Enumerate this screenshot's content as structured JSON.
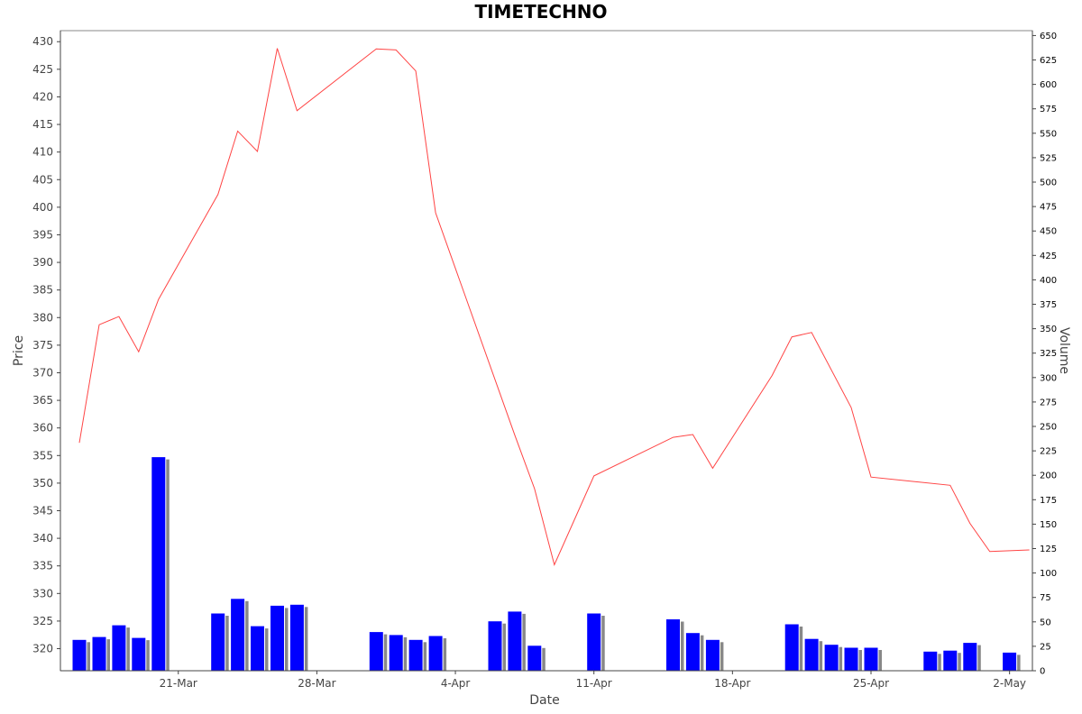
{
  "chart_data": {
    "type": "line",
    "title": "TIMETECHNO",
    "xlabel": "Date",
    "ylabel": "Price",
    "y2label": "Volume",
    "x_ticks": [
      "21-Mar",
      "28-Mar",
      "4-Apr",
      "11-Apr",
      "18-Apr",
      "25-Apr",
      "2-May"
    ],
    "x_tick_days": [
      5,
      12,
      19,
      26,
      33,
      40,
      47
    ],
    "ylim": [
      316,
      432
    ],
    "y_ticks": [
      320,
      325,
      330,
      335,
      340,
      345,
      350,
      355,
      360,
      365,
      370,
      375,
      380,
      385,
      390,
      395,
      400,
      405,
      410,
      415,
      420,
      425,
      430
    ],
    "y2lim": [
      0,
      655
    ],
    "y2_ticks": [
      0,
      25,
      50,
      75,
      100,
      125,
      150,
      175,
      200,
      225,
      250,
      275,
      300,
      325,
      350,
      375,
      400,
      425,
      450,
      475,
      500,
      525,
      550,
      575,
      600,
      625,
      650
    ],
    "grid": false,
    "colors": {
      "price": "#ff4444",
      "volume": "#0000ff",
      "volume_shadow": "#888888"
    },
    "series": [
      {
        "name": "Price",
        "type": "line",
        "points": [
          [
            0,
            357.3
          ],
          [
            1,
            378.7
          ],
          [
            2,
            380.2
          ],
          [
            3,
            373.8
          ],
          [
            4,
            383.3
          ],
          [
            7,
            402.3
          ],
          [
            8,
            413.8
          ],
          [
            9,
            410.1
          ],
          [
            10,
            428.8
          ],
          [
            11,
            417.5
          ],
          [
            15,
            428.7
          ],
          [
            16,
            428.5
          ],
          [
            17,
            424.7
          ],
          [
            18,
            399.0
          ],
          [
            22,
            358.7
          ],
          [
            23,
            349.0
          ],
          [
            24,
            335.2
          ],
          [
            26,
            351.3
          ],
          [
            30,
            358.3
          ],
          [
            31,
            358.8
          ],
          [
            32,
            352.7
          ],
          [
            35,
            369.5
          ],
          [
            36,
            376.5
          ],
          [
            37,
            377.3
          ],
          [
            39,
            363.7
          ],
          [
            40,
            351.1
          ],
          [
            44,
            349.6
          ],
          [
            45,
            342.7
          ],
          [
            46,
            337.6
          ],
          [
            48,
            337.9
          ]
        ]
      },
      {
        "name": "Volume",
        "type": "bar",
        "points": [
          [
            0,
            32
          ],
          [
            1,
            35
          ],
          [
            2,
            47
          ],
          [
            3,
            34
          ],
          [
            4,
            219
          ],
          [
            7,
            59
          ],
          [
            8,
            74
          ],
          [
            9,
            46
          ],
          [
            10,
            67
          ],
          [
            11,
            68
          ],
          [
            15,
            40
          ],
          [
            16,
            37
          ],
          [
            17,
            32
          ],
          [
            18,
            36
          ],
          [
            21,
            51
          ],
          [
            22,
            61
          ],
          [
            23,
            26
          ],
          [
            26,
            59
          ],
          [
            30,
            53
          ],
          [
            31,
            39
          ],
          [
            32,
            32
          ],
          [
            36,
            48
          ],
          [
            37,
            33
          ],
          [
            38,
            27
          ],
          [
            39,
            24
          ],
          [
            40,
            24
          ],
          [
            43,
            20
          ],
          [
            44,
            21
          ],
          [
            45,
            29
          ],
          [
            47,
            19
          ]
        ]
      }
    ]
  }
}
